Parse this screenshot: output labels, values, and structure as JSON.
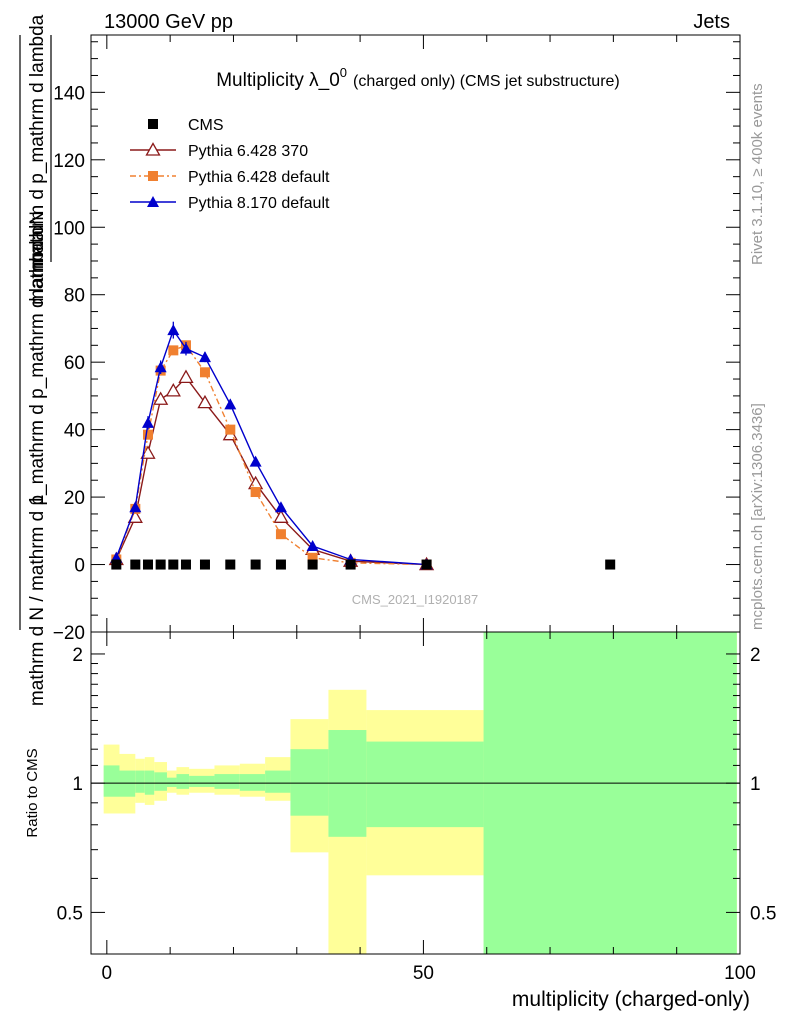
{
  "header": {
    "left": "13000 GeV pp",
    "right": "Jets"
  },
  "side_labels": {
    "rivet": "Rivet 3.1.10, ≥ 400k events",
    "mcplots": "mcplots.cern.ch [arXiv:1306.3436]"
  },
  "chart_data": [
    {
      "type": "line",
      "title": "Multiplicity λ_0",
      "title_superscript": "0",
      "subtitle": "(charged only) (CMS jet substructure)",
      "ylabel_numerator": "mathrm dN",
      "ylabel_denominator_top": "mathrm d p_mathrm d lambda",
      "ylabel_prefix": "1",
      "ylabel_denominator_bottom": "mathrm d N / mathrm d p_mathrm d p_mathrm d lambda",
      "watermark": "CMS_2021_I1920187",
      "xlim": [
        -2.5,
        100
      ],
      "ylim": [
        -20,
        157
      ],
      "y_ticks": [
        -20,
        0,
        20,
        40,
        60,
        80,
        100,
        120,
        140
      ],
      "y_tick_labels": [
        "−20",
        "0",
        "20",
        "40",
        "60",
        "80",
        "100",
        "120",
        "140"
      ],
      "legend_position": "top-left",
      "series": [
        {
          "name": "CMS",
          "color": "#000000",
          "marker": "square",
          "x": [
            1.5,
            4.5,
            6.5,
            8.5,
            10.5,
            12.5,
            15.5,
            19.5,
            23.5,
            27.5,
            32.5,
            38.5,
            50.5,
            79.5
          ],
          "y": [
            0,
            0,
            0,
            0,
            0,
            0,
            0,
            0,
            0,
            0,
            0,
            0,
            0,
            0
          ]
        },
        {
          "name": "Pythia 6.428 370",
          "color": "#8b1a1a",
          "marker": "open-triangle",
          "line": "solid",
          "x": [
            1.5,
            4.5,
            6.5,
            8.5,
            10.5,
            12.5,
            15.5,
            19.5,
            23.5,
            27.5,
            32.5,
            38.5,
            50.5
          ],
          "y": [
            1.5,
            14,
            33,
            49,
            51.5,
            55.5,
            48,
            38.5,
            24,
            14,
            4.5,
            1,
            0
          ]
        },
        {
          "name": "Pythia 6.428 default",
          "color": "#f08030",
          "marker": "square",
          "line": "dash-dot",
          "x": [
            1.5,
            4.5,
            6.5,
            8.5,
            10.5,
            12.5,
            15.5,
            19.5,
            23.5,
            27.5,
            32.5,
            38.5,
            50.5
          ],
          "y": [
            1.5,
            16.5,
            38.5,
            57.5,
            63.5,
            65,
            57,
            40,
            21.5,
            9,
            2,
            0.5,
            0
          ]
        },
        {
          "name": "Pythia 8.170 default",
          "color": "#0000cc",
          "marker": "filled-triangle",
          "line": "solid",
          "x": [
            1.5,
            4.5,
            6.5,
            8.5,
            10.5,
            12.5,
            15.5,
            19.5,
            23.5,
            27.5,
            32.5,
            38.5,
            50.5
          ],
          "y": [
            2,
            17,
            42,
            58.5,
            69.5,
            64,
            61.5,
            47.5,
            30.5,
            17,
            5.5,
            1.5,
            0
          ],
          "errors": [
            0.5,
            1,
            2,
            2,
            2.5,
            2,
            1.5,
            1.5,
            1,
            0.8,
            0.5,
            0.3,
            0.1
          ]
        }
      ]
    },
    {
      "type": "area",
      "ylabel": "Ratio to CMS",
      "xlabel": "multiplicity (charged-only)",
      "xlim": [
        -2.5,
        100
      ],
      "ylim": [
        0.4,
        2.25
      ],
      "y_scale": "log",
      "y_ticks": [
        0.5,
        1,
        2
      ],
      "y_tick_labels": [
        "0.5",
        "1",
        "2"
      ],
      "x_ticks": [
        0,
        50,
        100
      ],
      "x_tick_labels": [
        "0",
        "50",
        "100"
      ],
      "reference_line": 1,
      "bands": [
        {
          "x0": -0.5,
          "x1": 2,
          "yellow": [
            0.85,
            1.23
          ],
          "green": [
            0.93,
            1.1
          ]
        },
        {
          "x0": 2,
          "x1": 4.5,
          "yellow": [
            0.85,
            1.17
          ],
          "green": [
            0.93,
            1.07
          ]
        },
        {
          "x0": 4.5,
          "x1": 6,
          "yellow": [
            0.9,
            1.14
          ],
          "green": [
            0.95,
            1.07
          ]
        },
        {
          "x0": 6,
          "x1": 7.5,
          "yellow": [
            0.89,
            1.15
          ],
          "green": [
            0.94,
            1.07
          ]
        },
        {
          "x0": 7.5,
          "x1": 9.5,
          "yellow": [
            0.91,
            1.12
          ],
          "green": [
            0.96,
            1.06
          ]
        },
        {
          "x0": 9.5,
          "x1": 11,
          "yellow": [
            0.95,
            1.07
          ],
          "green": [
            0.98,
            1.03
          ]
        },
        {
          "x0": 11,
          "x1": 13,
          "yellow": [
            0.94,
            1.09
          ],
          "green": [
            0.97,
            1.05
          ]
        },
        {
          "x0": 13,
          "x1": 17,
          "yellow": [
            0.95,
            1.08
          ],
          "green": [
            0.98,
            1.04
          ]
        },
        {
          "x0": 17,
          "x1": 21,
          "yellow": [
            0.94,
            1.1
          ],
          "green": [
            0.97,
            1.05
          ]
        },
        {
          "x0": 21,
          "x1": 25,
          "yellow": [
            0.93,
            1.11
          ],
          "green": [
            0.96,
            1.05
          ]
        },
        {
          "x0": 25,
          "x1": 29,
          "yellow": [
            0.91,
            1.15
          ],
          "green": [
            0.95,
            1.07
          ]
        },
        {
          "x0": 29,
          "x1": 35,
          "yellow": [
            0.69,
            1.41
          ],
          "green": [
            0.84,
            1.2
          ]
        },
        {
          "x0": 35,
          "x1": 41,
          "yellow": [
            0.35,
            1.65
          ],
          "green": [
            0.75,
            1.33
          ]
        },
        {
          "x0": 41,
          "x1": 59.5,
          "yellow": [
            0.61,
            1.48
          ],
          "green": [
            0.79,
            1.25
          ]
        },
        {
          "x0": 59.5,
          "x1": 99.5,
          "yellow": [
            0.35,
            2.25
          ],
          "green": [
            0.35,
            2.25
          ]
        }
      ]
    }
  ]
}
